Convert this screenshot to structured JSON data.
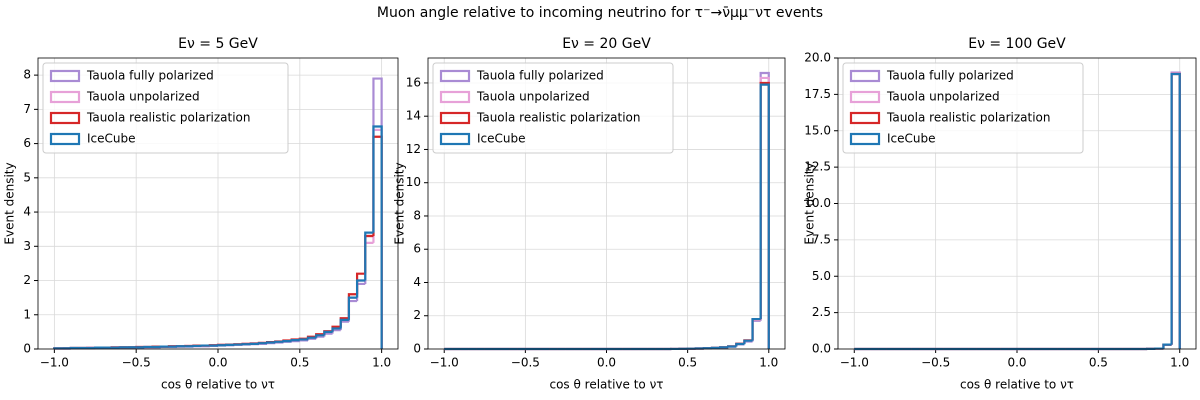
{
  "title": "Muon angle relative to incoming neutrino for τ⁻→ν̄μμ⁻ντ events",
  "chart_data": [
    {
      "type": "histogram",
      "title": "Eν = 5 GeV",
      "xlabel": "cos θ relative to ντ",
      "ylabel": "Event density",
      "bins": [
        -1,
        -0.95,
        -0.9,
        -0.85,
        -0.8,
        -0.75,
        -0.7,
        -0.65,
        -0.6,
        -0.55,
        -0.5,
        -0.45,
        -0.4,
        -0.35,
        -0.3,
        -0.25,
        -0.2,
        -0.15,
        -0.1,
        -0.05,
        0,
        0.05,
        0.1,
        0.15,
        0.2,
        0.25,
        0.3,
        0.35,
        0.4,
        0.45,
        0.5,
        0.55,
        0.6,
        0.65,
        0.7,
        0.75,
        0.8,
        0.85,
        0.9,
        0.95,
        1
      ],
      "series": [
        {
          "name": "Tauola fully polarized",
          "color": "#a98bd4",
          "values": [
            0.01,
            0.01,
            0.02,
            0.02,
            0.02,
            0.03,
            0.03,
            0.03,
            0.04,
            0.04,
            0.04,
            0.05,
            0.05,
            0.06,
            0.06,
            0.07,
            0.07,
            0.08,
            0.08,
            0.09,
            0.1,
            0.11,
            0.12,
            0.13,
            0.14,
            0.15,
            0.17,
            0.19,
            0.21,
            0.23,
            0.25,
            0.3,
            0.36,
            0.45,
            0.55,
            0.8,
            1.4,
            1.9,
            3.3,
            7.9
          ]
        },
        {
          "name": "Tauola unpolarized",
          "color": "#e7a1d8",
          "values": [
            0.02,
            0.02,
            0.03,
            0.03,
            0.04,
            0.04,
            0.04,
            0.05,
            0.05,
            0.05,
            0.06,
            0.06,
            0.07,
            0.07,
            0.08,
            0.08,
            0.09,
            0.09,
            0.1,
            0.11,
            0.12,
            0.12,
            0.13,
            0.15,
            0.16,
            0.17,
            0.19,
            0.21,
            0.24,
            0.27,
            0.29,
            0.34,
            0.41,
            0.5,
            0.62,
            0.85,
            1.5,
            2.0,
            3.1,
            6.4
          ]
        },
        {
          "name": "Tauola realistic polarization",
          "color": "#d62728",
          "values": [
            0.02,
            0.02,
            0.03,
            0.03,
            0.03,
            0.04,
            0.04,
            0.05,
            0.05,
            0.05,
            0.06,
            0.06,
            0.07,
            0.07,
            0.08,
            0.08,
            0.09,
            0.1,
            0.1,
            0.11,
            0.12,
            0.13,
            0.14,
            0.15,
            0.16,
            0.18,
            0.2,
            0.22,
            0.25,
            0.28,
            0.3,
            0.36,
            0.43,
            0.52,
            0.65,
            0.9,
            1.6,
            2.2,
            3.3,
            6.2
          ]
        },
        {
          "name": "IceCube",
          "color": "#1f77b4",
          "values": [
            0.02,
            0.02,
            0.03,
            0.03,
            0.03,
            0.04,
            0.04,
            0.04,
            0.05,
            0.05,
            0.05,
            0.06,
            0.06,
            0.07,
            0.07,
            0.08,
            0.08,
            0.09,
            0.1,
            0.1,
            0.11,
            0.12,
            0.13,
            0.14,
            0.15,
            0.17,
            0.19,
            0.21,
            0.23,
            0.26,
            0.28,
            0.33,
            0.4,
            0.5,
            0.6,
            0.85,
            1.5,
            2.0,
            3.4,
            6.5
          ]
        }
      ],
      "xlim": [
        -1.1,
        1.1
      ],
      "xticks": [
        {
          "value": -1,
          "label": "−1.0"
        },
        {
          "value": -0.5,
          "label": "−0.5"
        },
        {
          "value": 0,
          "label": "0.0"
        },
        0.5,
        {
          "value": 1,
          "label": "1.0"
        }
      ],
      "ylim": [
        0,
        8.5
      ],
      "yticks": [
        0,
        1,
        2,
        3,
        4,
        5,
        6,
        7,
        8
      ],
      "grid": true,
      "legend": "upper left"
    },
    {
      "type": "histogram",
      "title": "Eν = 20 GeV",
      "xlabel": "cos θ relative to ντ",
      "ylabel": "Event density",
      "bins": [
        -1,
        -0.95,
        -0.9,
        -0.85,
        -0.8,
        -0.75,
        -0.7,
        -0.65,
        -0.6,
        -0.55,
        -0.5,
        -0.45,
        -0.4,
        -0.35,
        -0.3,
        -0.25,
        -0.2,
        -0.15,
        -0.1,
        -0.05,
        0,
        0.05,
        0.1,
        0.15,
        0.2,
        0.25,
        0.3,
        0.35,
        0.4,
        0.45,
        0.5,
        0.55,
        0.6,
        0.65,
        0.7,
        0.75,
        0.8,
        0.85,
        0.9,
        0.95,
        1
      ],
      "series": [
        {
          "name": "Tauola fully polarized",
          "color": "#a98bd4",
          "values": [
            0,
            0,
            0,
            0,
            0,
            0,
            0,
            0,
            0,
            0,
            0,
            0,
            0,
            0,
            0,
            0,
            0,
            0,
            0,
            0,
            0,
            0,
            0,
            0,
            0,
            0,
            0,
            0,
            0.005,
            0.01,
            0.02,
            0.03,
            0.04,
            0.06,
            0.09,
            0.14,
            0.28,
            0.45,
            1.7,
            16.6
          ]
        },
        {
          "name": "Tauola unpolarized",
          "color": "#e7a1d8",
          "values": [
            0,
            0,
            0,
            0,
            0,
            0,
            0,
            0,
            0,
            0,
            0,
            0,
            0,
            0,
            0,
            0,
            0,
            0,
            0,
            0,
            0,
            0,
            0,
            0,
            0,
            0,
            0,
            0,
            0.005,
            0.01,
            0.02,
            0.03,
            0.05,
            0.07,
            0.1,
            0.15,
            0.3,
            0.5,
            1.75,
            16.3
          ]
        },
        {
          "name": "Tauola realistic polarization",
          "color": "#d62728",
          "values": [
            0,
            0,
            0,
            0,
            0,
            0,
            0,
            0,
            0,
            0,
            0,
            0,
            0,
            0,
            0,
            0,
            0,
            0,
            0,
            0,
            0,
            0,
            0,
            0,
            0,
            0,
            0,
            0,
            0.005,
            0.01,
            0.02,
            0.03,
            0.05,
            0.07,
            0.1,
            0.16,
            0.32,
            0.52,
            1.8,
            16.0
          ]
        },
        {
          "name": "IceCube",
          "color": "#1f77b4",
          "values": [
            0,
            0,
            0,
            0,
            0,
            0,
            0,
            0,
            0,
            0,
            0,
            0,
            0,
            0,
            0,
            0,
            0,
            0,
            0,
            0,
            0,
            0,
            0,
            0,
            0,
            0,
            0,
            0,
            0.005,
            0.01,
            0.02,
            0.03,
            0.05,
            0.07,
            0.1,
            0.15,
            0.3,
            0.5,
            1.8,
            15.9
          ]
        }
      ],
      "xlim": [
        -1.1,
        1.1
      ],
      "xticks": [
        {
          "value": -1,
          "label": "−1.0"
        },
        {
          "value": -0.5,
          "label": "−0.5"
        },
        {
          "value": 0,
          "label": "0.0"
        },
        0.5,
        {
          "value": 1,
          "label": "1.0"
        }
      ],
      "ylim": [
        0,
        17.5
      ],
      "yticks": [
        0,
        2,
        4,
        6,
        8,
        10,
        12,
        14,
        16
      ],
      "grid": true,
      "legend": "upper left"
    },
    {
      "type": "histogram",
      "title": "Eν = 100 GeV",
      "xlabel": "cos θ relative to ντ",
      "ylabel": "Event density",
      "bins": [
        -1,
        -0.95,
        -0.9,
        -0.85,
        -0.8,
        -0.75,
        -0.7,
        -0.65,
        -0.6,
        -0.55,
        -0.5,
        -0.45,
        -0.4,
        -0.35,
        -0.3,
        -0.25,
        -0.2,
        -0.15,
        -0.1,
        -0.05,
        0,
        0.05,
        0.1,
        0.15,
        0.2,
        0.25,
        0.3,
        0.35,
        0.4,
        0.45,
        0.5,
        0.55,
        0.6,
        0.65,
        0.7,
        0.75,
        0.8,
        0.85,
        0.9,
        0.95,
        1
      ],
      "series": [
        {
          "name": "Tauola fully polarized",
          "color": "#a98bd4",
          "values": [
            0,
            0,
            0,
            0,
            0,
            0,
            0,
            0,
            0,
            0,
            0,
            0,
            0,
            0,
            0,
            0,
            0,
            0,
            0,
            0,
            0,
            0,
            0,
            0,
            0,
            0,
            0,
            0,
            0,
            0,
            0,
            0,
            0,
            0,
            0,
            0,
            0.01,
            0.03,
            0.28,
            19.0
          ]
        },
        {
          "name": "Tauola unpolarized",
          "color": "#e7a1d8",
          "values": [
            0,
            0,
            0,
            0,
            0,
            0,
            0,
            0,
            0,
            0,
            0,
            0,
            0,
            0,
            0,
            0,
            0,
            0,
            0,
            0,
            0,
            0,
            0,
            0,
            0,
            0,
            0,
            0,
            0,
            0,
            0,
            0,
            0,
            0,
            0,
            0,
            0.01,
            0.03,
            0.29,
            18.95
          ]
        },
        {
          "name": "Tauola realistic polarization",
          "color": "#d62728",
          "values": [
            0,
            0,
            0,
            0,
            0,
            0,
            0,
            0,
            0,
            0,
            0,
            0,
            0,
            0,
            0,
            0,
            0,
            0,
            0,
            0,
            0,
            0,
            0,
            0,
            0,
            0,
            0,
            0,
            0,
            0,
            0,
            0,
            0,
            0,
            0,
            0,
            0.01,
            0.03,
            0.3,
            18.9
          ]
        },
        {
          "name": "IceCube",
          "color": "#1f77b4",
          "values": [
            0,
            0,
            0,
            0,
            0,
            0,
            0,
            0,
            0,
            0,
            0,
            0,
            0,
            0,
            0,
            0,
            0,
            0,
            0,
            0,
            0,
            0,
            0,
            0,
            0,
            0,
            0,
            0,
            0,
            0,
            0,
            0,
            0,
            0,
            0,
            0,
            0.01,
            0.03,
            0.3,
            18.9
          ]
        }
      ],
      "xlim": [
        -1.1,
        1.1
      ],
      "xticks": [
        {
          "value": -1,
          "label": "−1.0"
        },
        {
          "value": -0.5,
          "label": "−0.5"
        },
        {
          "value": 0,
          "label": "0.0"
        },
        0.5,
        {
          "value": 1,
          "label": "1.0"
        }
      ],
      "ylim": [
        0,
        20
      ],
      "yticks": [
        {
          "value": 0,
          "label": "0.0"
        },
        2.5,
        {
          "value": 5,
          "label": "5.0"
        },
        7.5,
        {
          "value": 10,
          "label": "10.0"
        },
        12.5,
        {
          "value": 15,
          "label": "15.0"
        },
        17.5,
        {
          "value": 20,
          "label": "20.0"
        }
      ],
      "grid": true,
      "legend": "upper left"
    }
  ]
}
